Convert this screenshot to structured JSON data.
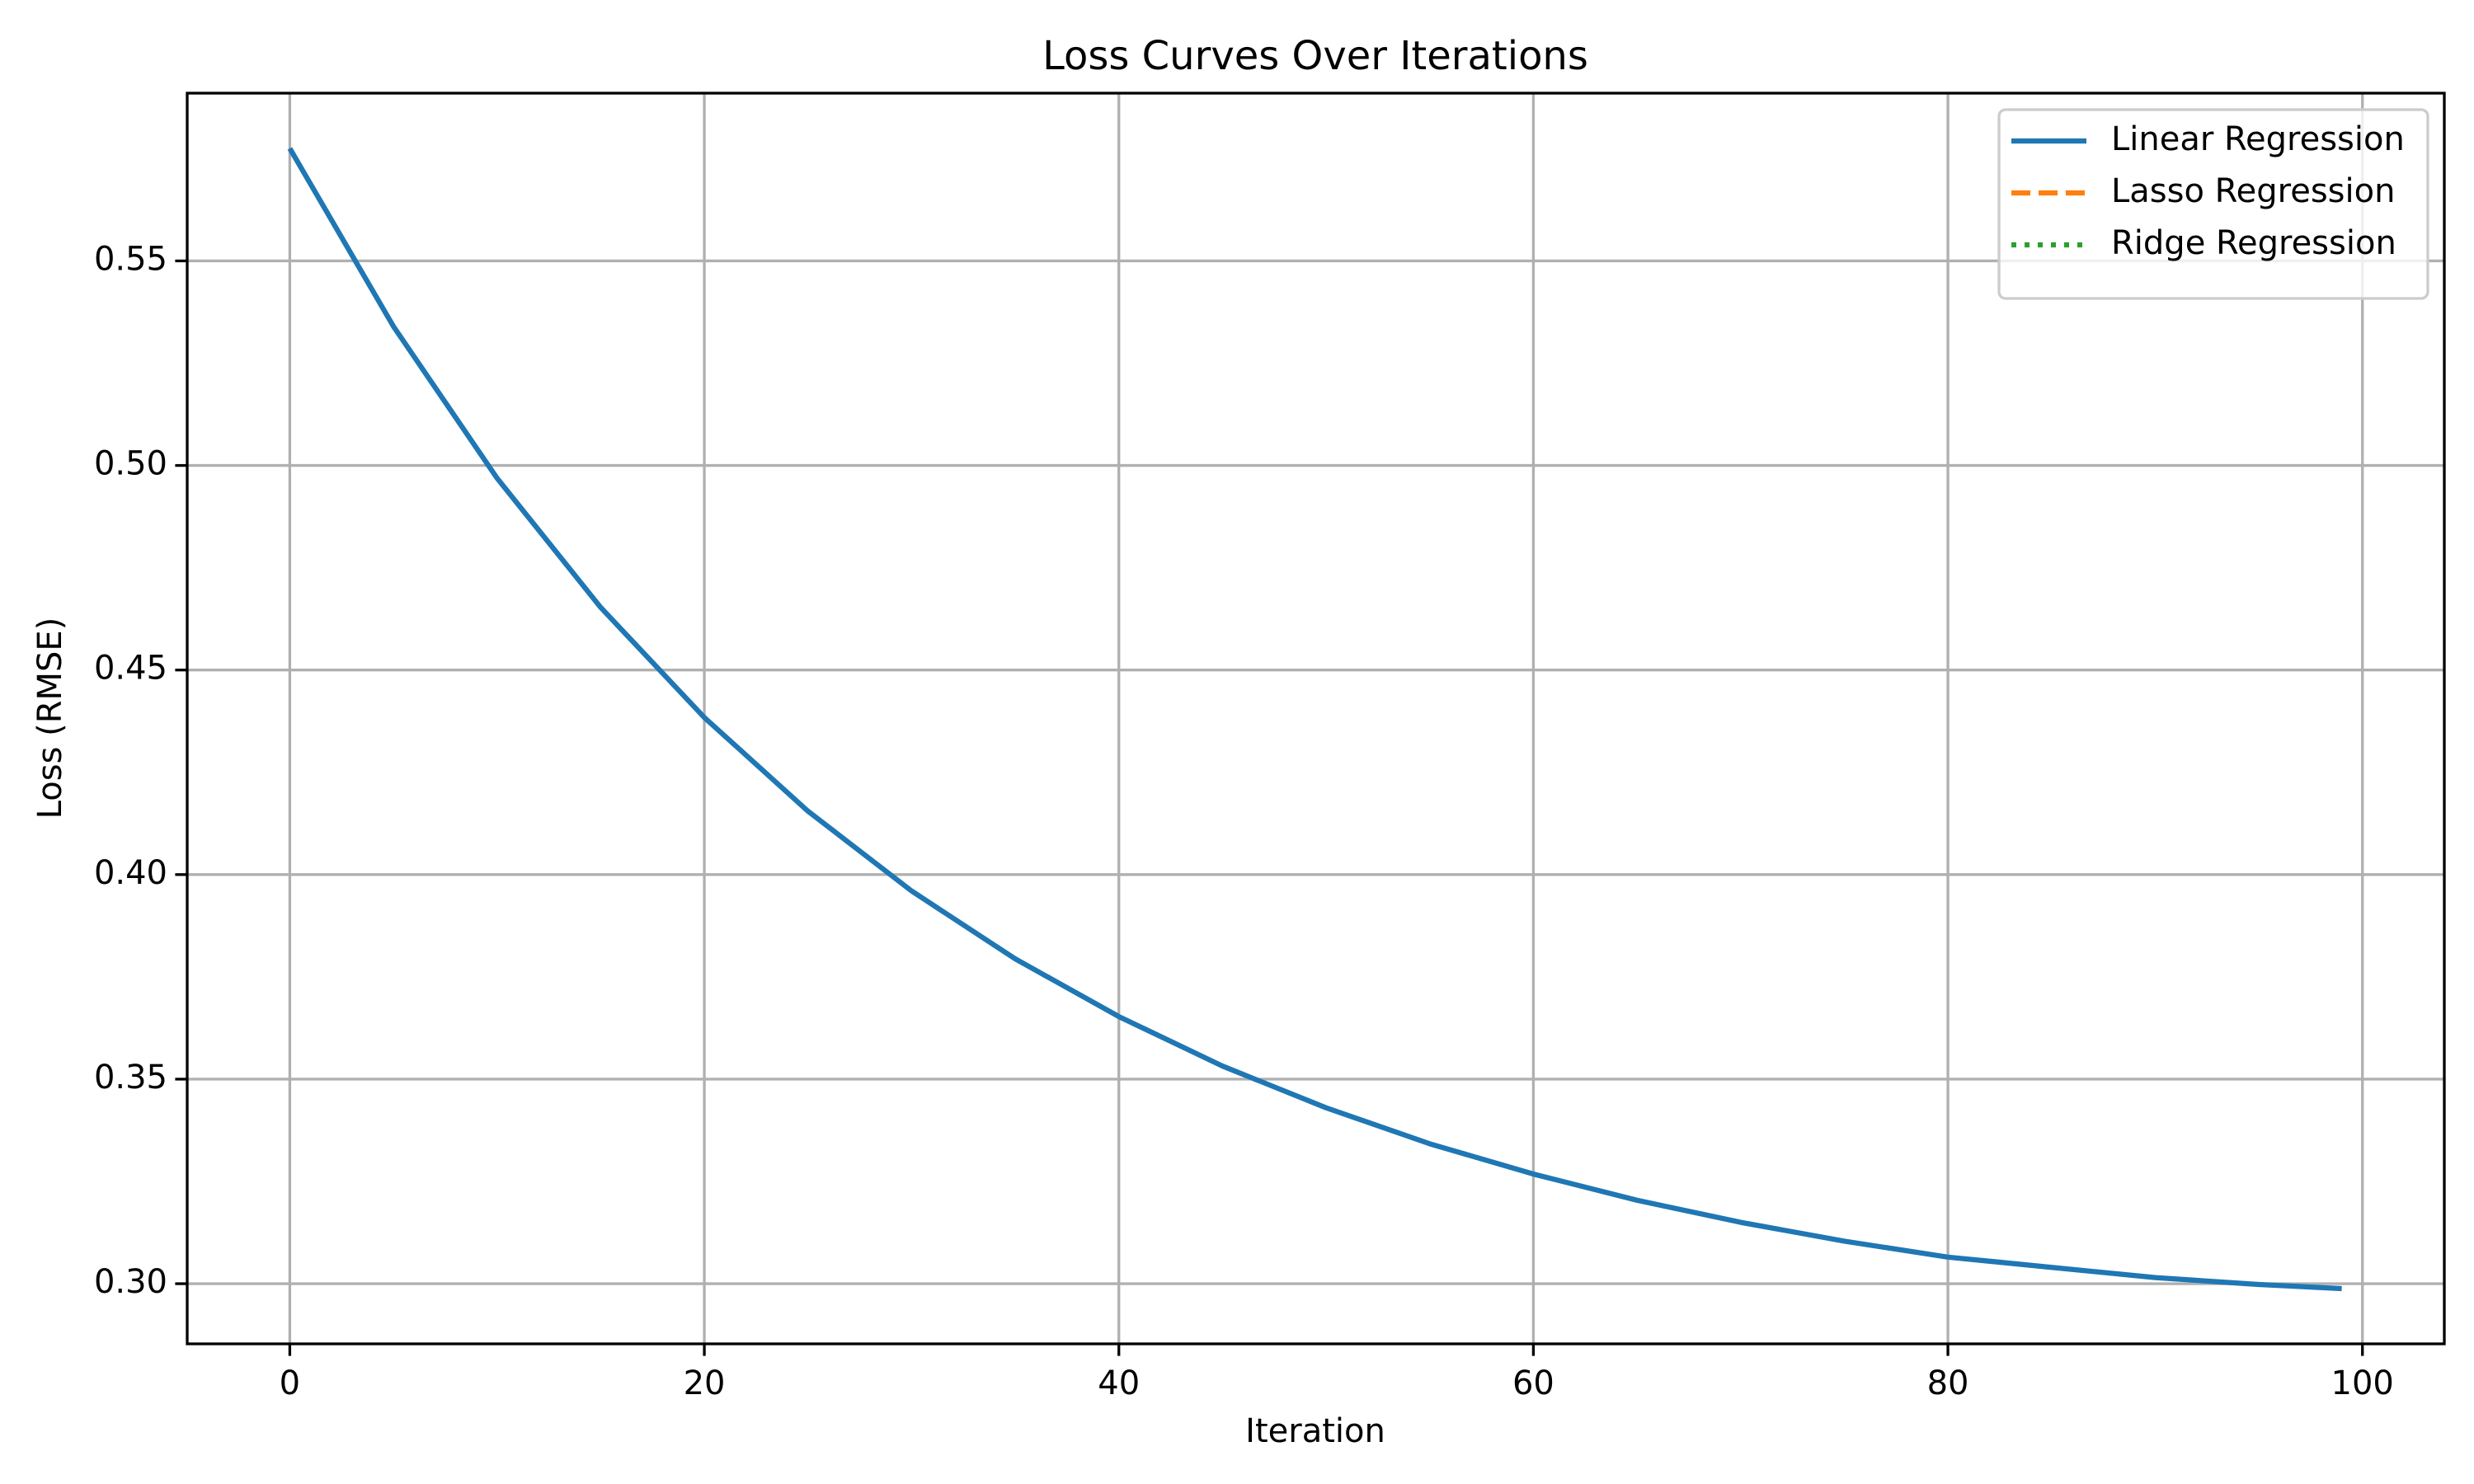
{
  "chart_data": {
    "type": "line",
    "title": "Loss Curves Over Iterations",
    "xlabel": "Iteration",
    "ylabel": "Loss (RMSE)",
    "x": [
      0,
      5,
      10,
      15,
      20,
      25,
      30,
      35,
      40,
      45,
      50,
      55,
      60,
      65,
      70,
      75,
      80,
      85,
      90,
      95,
      99
    ],
    "series": [
      {
        "name": "Linear Regression",
        "color": "#1f77b4",
        "linestyle": "solid",
        "values": [
          0.5775,
          0.534,
          0.4969,
          0.4653,
          0.4384,
          0.4155,
          0.396,
          0.3794,
          0.3653,
          0.3532,
          0.343,
          0.3342,
          0.3268,
          0.3204,
          0.315,
          0.3104,
          0.3065,
          0.304,
          0.3015,
          0.2998,
          0.2988
        ]
      },
      {
        "name": "Lasso Regression",
        "color": "#ff7f0e",
        "linestyle": "dashed",
        "values": [
          null,
          null,
          null,
          null,
          null,
          null,
          null,
          null,
          null,
          null,
          null,
          null,
          null,
          null,
          null,
          null,
          null,
          null,
          null,
          null,
          null
        ]
      },
      {
        "name": "Ridge Regression",
        "color": "#2ca02c",
        "linestyle": "dotted",
        "values": [
          null,
          null,
          null,
          null,
          null,
          null,
          null,
          null,
          null,
          null,
          null,
          null,
          null,
          null,
          null,
          null,
          null,
          null,
          null,
          null,
          null
        ]
      }
    ],
    "xlim": [
      -4.95,
      103.95
    ],
    "xticks": [
      0,
      20,
      40,
      60,
      80,
      100
    ],
    "ylim": [
      0.2853,
      0.591
    ],
    "yticks": [
      {
        "value": 0.3,
        "label": "0.30"
      },
      0.35,
      {
        "value": 0.4,
        "label": "0.40"
      },
      0.45,
      {
        "value": 0.5,
        "label": "0.50"
      },
      0.55
    ],
    "grid": true,
    "legend": "upper right"
  }
}
